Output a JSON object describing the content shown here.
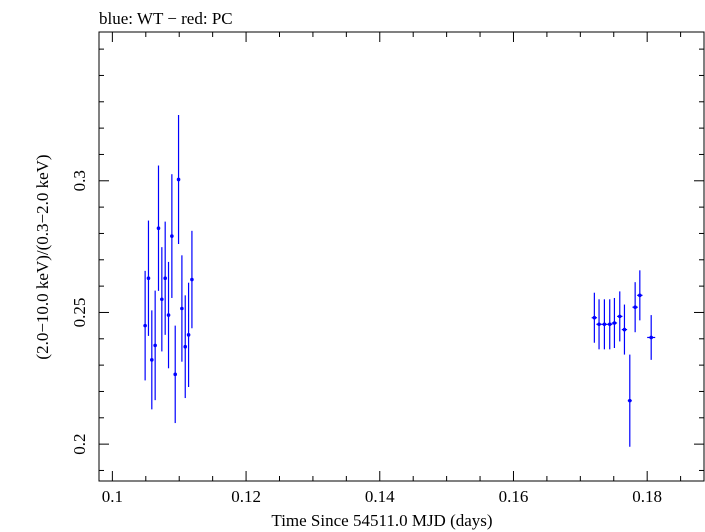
{
  "chart_data": {
    "type": "scatter",
    "title": "blue: WT − red: PC",
    "xlabel": "Time Since 54511.0 MJD (days)",
    "ylabel": "(2.0−10.0 keV)/(0.3−2.0 keV)",
    "xlim": [
      0.098,
      0.1885
    ],
    "ylim": [
      0.186,
      0.3565
    ],
    "x_ticks": [
      0.1,
      0.12,
      0.14,
      0.16,
      0.18
    ],
    "x_tick_labels": [
      "0.1",
      "0.12",
      "0.14",
      "0.16",
      "0.18"
    ],
    "y_ticks": [
      0.2,
      0.25,
      0.3
    ],
    "y_tick_labels": [
      "0.2",
      "0.25",
      "0.3"
    ],
    "grid": false,
    "series": [
      {
        "color": "#0000ff",
        "points": [
          {
            "x": 0.1049,
            "xerr": 0.0002,
            "y": 0.245,
            "yerr": 0.0208
          },
          {
            "x": 0.1054,
            "xerr": 0.0002,
            "y": 0.263,
            "yerr": 0.0219
          },
          {
            "x": 0.1059,
            "xerr": 0.0002,
            "y": 0.232,
            "yerr": 0.0188
          },
          {
            "x": 0.1064,
            "xerr": 0.0002,
            "y": 0.2375,
            "yerr": 0.0208
          },
          {
            "x": 0.1069,
            "xerr": 0.0002,
            "y": 0.282,
            "yerr": 0.0238
          },
          {
            "x": 0.1074,
            "xerr": 0.0002,
            "y": 0.255,
            "yerr": 0.0198
          },
          {
            "x": 0.1079,
            "xerr": 0.0002,
            "y": 0.263,
            "yerr": 0.0215
          },
          {
            "x": 0.1084,
            "xerr": 0.0002,
            "y": 0.249,
            "yerr": 0.0202
          },
          {
            "x": 0.1089,
            "xerr": 0.0002,
            "y": 0.279,
            "yerr": 0.0235
          },
          {
            "x": 0.1094,
            "xerr": 0.0002,
            "y": 0.2265,
            "yerr": 0.0185
          },
          {
            "x": 0.1099,
            "xerr": 0.0002,
            "y": 0.3005,
            "yerr": 0.0245
          },
          {
            "x": 0.1104,
            "xerr": 0.0002,
            "y": 0.2515,
            "yerr": 0.0202
          },
          {
            "x": 0.1109,
            "xerr": 0.0002,
            "y": 0.237,
            "yerr": 0.0195
          },
          {
            "x": 0.1114,
            "xerr": 0.0002,
            "y": 0.2415,
            "yerr": 0.0198
          },
          {
            "x": 0.1119,
            "xerr": 0.0002,
            "y": 0.2625,
            "yerr": 0.0185
          },
          {
            "x": 0.1721,
            "xerr": 0.0004,
            "y": 0.248,
            "yerr": 0.0095
          },
          {
            "x": 0.1728,
            "xerr": 0.0004,
            "y": 0.2455,
            "yerr": 0.0095
          },
          {
            "x": 0.1736,
            "xerr": 0.0004,
            "y": 0.2455,
            "yerr": 0.0095
          },
          {
            "x": 0.1744,
            "xerr": 0.0004,
            "y": 0.2455,
            "yerr": 0.0095
          },
          {
            "x": 0.1751,
            "xerr": 0.0004,
            "y": 0.246,
            "yerr": 0.0095
          },
          {
            "x": 0.1759,
            "xerr": 0.0004,
            "y": 0.2485,
            "yerr": 0.0095
          },
          {
            "x": 0.1766,
            "xerr": 0.0004,
            "y": 0.2435,
            "yerr": 0.0095
          },
          {
            "x": 0.1774,
            "xerr": 0.0003,
            "y": 0.2165,
            "yerr": 0.0175
          },
          {
            "x": 0.1782,
            "xerr": 0.0004,
            "y": 0.252,
            "yerr": 0.0095
          },
          {
            "x": 0.1789,
            "xerr": 0.0004,
            "y": 0.2565,
            "yerr": 0.0095
          },
          {
            "x": 0.1806,
            "xerr": 0.0006,
            "y": 0.2405,
            "yerr": 0.0085
          }
        ]
      }
    ]
  }
}
